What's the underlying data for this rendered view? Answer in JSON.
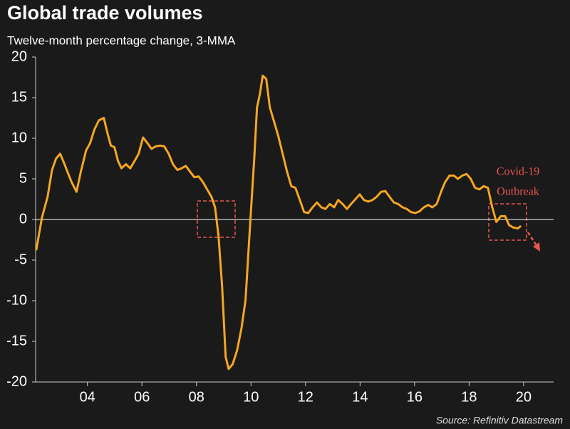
{
  "chart_data": {
    "type": "line",
    "title": "Global trade volumes",
    "subtitle": "Twelve-month percentage change, 3-MMA",
    "source": "Source: Refinitiv Datastream",
    "annotation": [
      "Covid-19",
      "Outbreak"
    ],
    "xlim": [
      2002.1,
      2021.1
    ],
    "ylim": [
      -20,
      20
    ],
    "yticks": [
      20,
      15,
      10,
      5,
      0,
      -5,
      -10,
      -15,
      -20
    ],
    "xticks": [
      {
        "value": 2004,
        "label": "04"
      },
      {
        "value": 2006,
        "label": "06"
      },
      {
        "value": 2008,
        "label": "08"
      },
      {
        "value": 2010,
        "label": "10"
      },
      {
        "value": 2012,
        "label": "12"
      },
      {
        "value": 2014,
        "label": "14"
      },
      {
        "value": 2016,
        "label": "16"
      },
      {
        "value": 2018,
        "label": "18"
      },
      {
        "value": 2020,
        "label": "20"
      }
    ],
    "x": [
      2002.12,
      2002.33,
      2002.54,
      2002.7,
      2002.85,
      2003.0,
      2003.16,
      2003.3,
      2003.42,
      2003.6,
      2003.76,
      2003.95,
      2004.1,
      2004.26,
      2004.42,
      2004.6,
      2004.73,
      2004.86,
      2004.99,
      2005.12,
      2005.25,
      2005.41,
      2005.57,
      2005.73,
      2005.88,
      2006.04,
      2006.2,
      2006.35,
      2006.51,
      2006.67,
      2006.82,
      2006.98,
      2007.14,
      2007.3,
      2007.45,
      2007.61,
      2007.76,
      2007.92,
      2008.08,
      2008.24,
      2008.39,
      2008.55,
      2008.68,
      2008.81,
      2008.94,
      2009.07,
      2009.18,
      2009.33,
      2009.49,
      2009.65,
      2009.8,
      2009.96,
      2010.12,
      2010.22,
      2010.33,
      2010.43,
      2010.56,
      2010.69,
      2010.85,
      2011.0,
      2011.16,
      2011.32,
      2011.48,
      2011.63,
      2011.79,
      2011.95,
      2012.1,
      2012.26,
      2012.42,
      2012.58,
      2012.73,
      2012.89,
      2013.05,
      2013.2,
      2013.36,
      2013.52,
      2013.67,
      2013.83,
      2013.99,
      2014.14,
      2014.3,
      2014.46,
      2014.61,
      2014.77,
      2014.93,
      2015.08,
      2015.24,
      2015.4,
      2015.56,
      2015.71,
      2015.87,
      2016.03,
      2016.18,
      2016.34,
      2016.5,
      2016.65,
      2016.81,
      2016.97,
      2017.12,
      2017.28,
      2017.44,
      2017.59,
      2017.75,
      2017.91,
      2018.06,
      2018.22,
      2018.38,
      2018.53,
      2018.69,
      2018.85,
      2019.0,
      2019.16,
      2019.32,
      2019.47,
      2019.63,
      2019.79,
      2019.9
    ],
    "series": [
      {
        "name": "Global trade volumes",
        "color": "#f5a623",
        "values": [
          -3.8,
          0.2,
          2.8,
          6.1,
          7.5,
          8.1,
          6.8,
          5.6,
          4.6,
          3.4,
          5.9,
          8.5,
          9.4,
          11.1,
          12.2,
          12.5,
          10.7,
          9.1,
          8.9,
          7.2,
          6.3,
          6.8,
          6.3,
          7.2,
          8.1,
          10.1,
          9.4,
          8.7,
          9.0,
          9.1,
          9.0,
          8.1,
          6.8,
          6.1,
          6.3,
          6.6,
          5.9,
          5.2,
          5.3,
          4.6,
          3.7,
          2.8,
          1.5,
          -2.0,
          -8.2,
          -16.9,
          -18.4,
          -17.8,
          -16.1,
          -13.4,
          -9.9,
          -1.1,
          7.6,
          13.8,
          15.5,
          17.7,
          17.3,
          13.8,
          12.0,
          10.3,
          8.1,
          5.9,
          4.1,
          3.9,
          2.4,
          0.9,
          0.8,
          1.5,
          2.1,
          1.5,
          1.3,
          1.9,
          1.5,
          2.4,
          1.9,
          1.3,
          1.9,
          2.5,
          3.1,
          2.4,
          2.2,
          2.4,
          2.8,
          3.4,
          3.5,
          2.8,
          2.1,
          1.9,
          1.5,
          1.3,
          0.9,
          0.8,
          1.0,
          1.5,
          1.8,
          1.5,
          1.9,
          3.4,
          4.6,
          5.4,
          5.4,
          5.0,
          5.4,
          5.6,
          5.0,
          3.9,
          3.7,
          4.1,
          3.9,
          1.5,
          -0.3,
          0.4,
          0.4,
          -0.7,
          -1.0,
          -1.1,
          -0.8
        ]
      }
    ]
  }
}
